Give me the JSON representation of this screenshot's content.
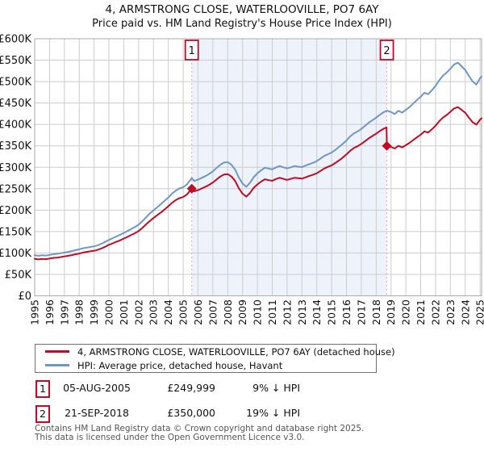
{
  "title": "4, ARMSTRONG CLOSE, WATERLOOVILLE, PO7 6AY",
  "subtitle": "Price paid vs. HM Land Registry's House Price Index (HPI)",
  "chart_data": {
    "type": "line",
    "units": "GBP_thousands",
    "x_axis": {
      "min": 1995,
      "max": 2025.1,
      "tick_years": [
        1995,
        1996,
        1997,
        1998,
        1999,
        2000,
        2001,
        2002,
        2003,
        2004,
        2005,
        2006,
        2007,
        2008,
        2009,
        2010,
        2011,
        2012,
        2013,
        2014,
        2015,
        2016,
        2017,
        2018,
        2019,
        2020,
        2021,
        2022,
        2023,
        2024,
        2025
      ]
    },
    "y_axis": {
      "min": 0,
      "max": 600,
      "tick_step": 50,
      "tick_labels": [
        "£0",
        "£50K",
        "£100K",
        "£150K",
        "£200K",
        "£250K",
        "£300K",
        "£350K",
        "£400K",
        "£450K",
        "£500K",
        "£550K",
        "£600K"
      ]
    },
    "grid": true,
    "legend_position": "bottom",
    "shaded_region": {
      "from": 2005.58,
      "to": 2018.72,
      "color": "#eef2fb"
    },
    "marker_line_color": "#f3a0ab",
    "markers": [
      {
        "label": "1",
        "x": 2005.58,
        "value_k": 250,
        "price": "£249,999"
      },
      {
        "label": "2",
        "x": 2018.72,
        "value_k": 350,
        "price": "£350,000"
      }
    ],
    "series": [
      {
        "name": "4, ARMSTRONG CLOSE, WATERLOOVILLE, PO7 6AY (detached house)",
        "color": "#c10b25",
        "points": [
          [
            1995.0,
            86.5
          ],
          [
            1995.25,
            85
          ],
          [
            1995.5,
            86
          ],
          [
            1995.75,
            85.5
          ],
          [
            1996.0,
            87
          ],
          [
            1996.25,
            88.5
          ],
          [
            1996.5,
            89
          ],
          [
            1996.75,
            90.5
          ],
          [
            1997.0,
            92
          ],
          [
            1997.25,
            93.5
          ],
          [
            1997.5,
            95
          ],
          [
            1997.75,
            97
          ],
          [
            1998.0,
            98.5
          ],
          [
            1998.25,
            101
          ],
          [
            1998.5,
            102.5
          ],
          [
            1998.75,
            104
          ],
          [
            1999.0,
            105
          ],
          [
            1999.25,
            107.5
          ],
          [
            1999.5,
            110.5
          ],
          [
            1999.75,
            114.5
          ],
          [
            2000.0,
            119
          ],
          [
            2000.25,
            122.5
          ],
          [
            2000.5,
            126
          ],
          [
            2000.75,
            129.5
          ],
          [
            2001.0,
            133.5
          ],
          [
            2001.25,
            137.5
          ],
          [
            2001.5,
            142
          ],
          [
            2001.75,
            146
          ],
          [
            2002.0,
            151
          ],
          [
            2002.25,
            158.5
          ],
          [
            2002.5,
            166.5
          ],
          [
            2002.75,
            174.5
          ],
          [
            2003.0,
            181.5
          ],
          [
            2003.25,
            188
          ],
          [
            2003.5,
            194.5
          ],
          [
            2003.75,
            201.5
          ],
          [
            2004.0,
            209
          ],
          [
            2004.25,
            217
          ],
          [
            2004.5,
            223.5
          ],
          [
            2004.75,
            228
          ],
          [
            2005.0,
            230.5
          ],
          [
            2005.25,
            236.5
          ],
          [
            2005.58,
            250
          ],
          [
            2005.75,
            244
          ],
          [
            2006.0,
            246.5
          ],
          [
            2006.25,
            250.5
          ],
          [
            2006.5,
            254.5
          ],
          [
            2006.75,
            259
          ],
          [
            2007.0,
            264.5
          ],
          [
            2007.25,
            271.5
          ],
          [
            2007.5,
            278.5
          ],
          [
            2007.75,
            283
          ],
          [
            2008.0,
            284
          ],
          [
            2008.25,
            278.5
          ],
          [
            2008.5,
            268
          ],
          [
            2008.75,
            251
          ],
          [
            2009.0,
            238.5
          ],
          [
            2009.25,
            231.5
          ],
          [
            2009.5,
            240
          ],
          [
            2009.75,
            252
          ],
          [
            2010.0,
            260
          ],
          [
            2010.25,
            266.5
          ],
          [
            2010.5,
            272
          ],
          [
            2010.75,
            270
          ],
          [
            2011.0,
            268.5
          ],
          [
            2011.25,
            272.5
          ],
          [
            2011.5,
            275.5
          ],
          [
            2011.75,
            273
          ],
          [
            2012.0,
            270.5
          ],
          [
            2012.25,
            273
          ],
          [
            2012.5,
            275.5
          ],
          [
            2012.75,
            274.5
          ],
          [
            2013.0,
            273.5
          ],
          [
            2013.25,
            276.5
          ],
          [
            2013.5,
            280
          ],
          [
            2013.75,
            282.5
          ],
          [
            2014.0,
            286
          ],
          [
            2014.25,
            291.5
          ],
          [
            2014.5,
            297
          ],
          [
            2014.75,
            301
          ],
          [
            2015.0,
            304.5
          ],
          [
            2015.25,
            310
          ],
          [
            2015.5,
            316
          ],
          [
            2015.75,
            322.5
          ],
          [
            2016.0,
            330
          ],
          [
            2016.25,
            338.5
          ],
          [
            2016.5,
            345
          ],
          [
            2016.75,
            349
          ],
          [
            2017.0,
            354.5
          ],
          [
            2017.25,
            361
          ],
          [
            2017.5,
            367.5
          ],
          [
            2017.75,
            373
          ],
          [
            2018.0,
            378.5
          ],
          [
            2018.25,
            384.5
          ],
          [
            2018.5,
            390
          ],
          [
            2018.7,
            393
          ],
          [
            2018.72,
            350
          ],
          [
            2019.0,
            347.5
          ],
          [
            2019.25,
            344
          ],
          [
            2019.5,
            350
          ],
          [
            2019.75,
            346.5
          ],
          [
            2020.0,
            351.5
          ],
          [
            2020.25,
            357
          ],
          [
            2020.5,
            363.5
          ],
          [
            2020.75,
            370
          ],
          [
            2021.0,
            376
          ],
          [
            2021.25,
            384
          ],
          [
            2021.5,
            381
          ],
          [
            2021.75,
            388.5
          ],
          [
            2022.0,
            397
          ],
          [
            2022.25,
            407.5
          ],
          [
            2022.5,
            416
          ],
          [
            2022.75,
            422
          ],
          [
            2023.0,
            429.5
          ],
          [
            2023.25,
            437.5
          ],
          [
            2023.5,
            440.5
          ],
          [
            2023.75,
            434
          ],
          [
            2024.0,
            427
          ],
          [
            2024.25,
            415.5
          ],
          [
            2024.5,
            405
          ],
          [
            2024.75,
            399.5
          ],
          [
            2025.0,
            411.5
          ],
          [
            2025.1,
            414.5
          ]
        ]
      },
      {
        "name": "HPI: Average price, detached house, Havant",
        "color": "#6e96c8",
        "points": [
          [
            1995.0,
            95
          ],
          [
            1995.25,
            93.5
          ],
          [
            1995.5,
            94.5
          ],
          [
            1995.75,
            94
          ],
          [
            1996.0,
            95.5
          ],
          [
            1996.25,
            97
          ],
          [
            1996.5,
            98
          ],
          [
            1996.75,
            99.5
          ],
          [
            1997.0,
            101
          ],
          [
            1997.25,
            102.5
          ],
          [
            1997.5,
            104.5
          ],
          [
            1997.75,
            106.5
          ],
          [
            1998.0,
            108.5
          ],
          [
            1998.25,
            111
          ],
          [
            1998.5,
            112.5
          ],
          [
            1998.75,
            114
          ],
          [
            1999.0,
            115.5
          ],
          [
            1999.25,
            118
          ],
          [
            1999.5,
            121.5
          ],
          [
            1999.75,
            126
          ],
          [
            2000.0,
            130.5
          ],
          [
            2000.25,
            134.5
          ],
          [
            2000.5,
            138.5
          ],
          [
            2000.75,
            142.5
          ],
          [
            2001.0,
            146.5
          ],
          [
            2001.25,
            151
          ],
          [
            2001.5,
            156
          ],
          [
            2001.75,
            160.5
          ],
          [
            2002.0,
            166
          ],
          [
            2002.25,
            174
          ],
          [
            2002.5,
            183
          ],
          [
            2002.75,
            192
          ],
          [
            2003.0,
            199.5
          ],
          [
            2003.25,
            206.5
          ],
          [
            2003.5,
            214
          ],
          [
            2003.75,
            221.5
          ],
          [
            2004.0,
            229.5
          ],
          [
            2004.25,
            238.5
          ],
          [
            2004.5,
            245.5
          ],
          [
            2004.75,
            250.5
          ],
          [
            2005.0,
            253.5
          ],
          [
            2005.25,
            260
          ],
          [
            2005.58,
            274.7
          ],
          [
            2005.75,
            268
          ],
          [
            2006.0,
            271
          ],
          [
            2006.25,
            275.5
          ],
          [
            2006.5,
            279.5
          ],
          [
            2006.75,
            284.5
          ],
          [
            2007.0,
            290.5
          ],
          [
            2007.25,
            298.5
          ],
          [
            2007.5,
            306
          ],
          [
            2007.75,
            311
          ],
          [
            2008.0,
            312
          ],
          [
            2008.25,
            306
          ],
          [
            2008.5,
            294.5
          ],
          [
            2008.75,
            276
          ],
          [
            2009.0,
            262
          ],
          [
            2009.25,
            254.5
          ],
          [
            2009.5,
            264
          ],
          [
            2009.75,
            277
          ],
          [
            2010.0,
            286
          ],
          [
            2010.25,
            293
          ],
          [
            2010.5,
            299
          ],
          [
            2010.75,
            297
          ],
          [
            2011.0,
            295
          ],
          [
            2011.25,
            299.5
          ],
          [
            2011.5,
            303
          ],
          [
            2011.75,
            300
          ],
          [
            2012.0,
            297.5
          ],
          [
            2012.25,
            300
          ],
          [
            2012.5,
            303
          ],
          [
            2012.75,
            301.5
          ],
          [
            2013.0,
            300.5
          ],
          [
            2013.25,
            304
          ],
          [
            2013.5,
            307.5
          ],
          [
            2013.75,
            310.5
          ],
          [
            2014.0,
            314.5
          ],
          [
            2014.25,
            320.5
          ],
          [
            2014.5,
            326.5
          ],
          [
            2014.75,
            330.5
          ],
          [
            2015.0,
            334.5
          ],
          [
            2015.25,
            340.5
          ],
          [
            2015.5,
            347.5
          ],
          [
            2015.75,
            354.5
          ],
          [
            2016.0,
            362.5
          ],
          [
            2016.25,
            372
          ],
          [
            2016.5,
            379
          ],
          [
            2016.75,
            383.5
          ],
          [
            2017.0,
            389.5
          ],
          [
            2017.25,
            396.5
          ],
          [
            2017.5,
            404
          ],
          [
            2017.75,
            410
          ],
          [
            2018.0,
            416
          ],
          [
            2018.25,
            422.5
          ],
          [
            2018.5,
            428.5
          ],
          [
            2018.72,
            432.1
          ],
          [
            2019.0,
            429
          ],
          [
            2019.25,
            424.5
          ],
          [
            2019.5,
            432
          ],
          [
            2019.75,
            427.5
          ],
          [
            2020.0,
            434
          ],
          [
            2020.25,
            440.5
          ],
          [
            2020.5,
            449
          ],
          [
            2020.75,
            457
          ],
          [
            2021.0,
            464.5
          ],
          [
            2021.25,
            474
          ],
          [
            2021.5,
            470.5
          ],
          [
            2021.75,
            479.5
          ],
          [
            2022.0,
            490
          ],
          [
            2022.25,
            503
          ],
          [
            2022.5,
            513.5
          ],
          [
            2022.75,
            521
          ],
          [
            2023.0,
            530
          ],
          [
            2023.25,
            540
          ],
          [
            2023.5,
            544
          ],
          [
            2023.75,
            536
          ],
          [
            2024.0,
            527
          ],
          [
            2024.25,
            513
          ],
          [
            2024.5,
            500
          ],
          [
            2024.75,
            493
          ],
          [
            2025.0,
            508
          ],
          [
            2025.1,
            512
          ]
        ]
      }
    ],
    "colors": {
      "grid": "#cccccc",
      "plot_border": "#aaaaaa",
      "tick_text": "#111111"
    }
  },
  "legend": {
    "items": [
      {
        "label": "4, ARMSTRONG CLOSE, WATERLOOVILLE, PO7 6AY (detached house)",
        "color": "#c10b25"
      },
      {
        "label": "HPI: Average price, detached house, Havant",
        "color": "#6e96c8"
      }
    ]
  },
  "transactions": [
    {
      "num": "1",
      "date": "05-AUG-2005",
      "price": "£249,999",
      "hpi_diff": "9% ↓ HPI"
    },
    {
      "num": "2",
      "date": "21-SEP-2018",
      "price": "£350,000",
      "hpi_diff": "19% ↓ HPI"
    }
  ],
  "footer": {
    "line1": "Contains HM Land Registry data © Crown copyright and database right 2025.",
    "line2": "This data is licensed under the Open Government Licence v3.0."
  }
}
